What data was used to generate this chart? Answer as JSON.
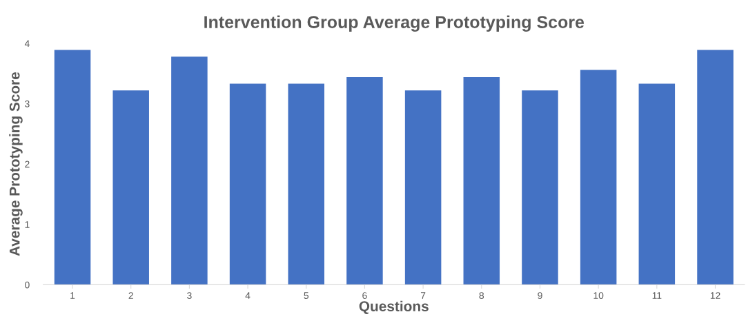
{
  "chart_data": {
    "type": "bar",
    "title": "Intervention Group Average Prototyping Score",
    "xlabel": "Questions",
    "ylabel": "Average Prototyping Score",
    "categories": [
      "1",
      "2",
      "3",
      "4",
      "5",
      "6",
      "7",
      "8",
      "9",
      "10",
      "11",
      "12"
    ],
    "values": [
      3.89,
      3.22,
      3.78,
      3.33,
      3.33,
      3.44,
      3.22,
      3.44,
      3.22,
      3.56,
      3.33,
      3.89
    ],
    "color": "#4472c4",
    "ylim": [
      0,
      4
    ],
    "yticks": [
      0,
      1,
      2,
      3,
      4
    ],
    "grid": false,
    "legend": false
  }
}
